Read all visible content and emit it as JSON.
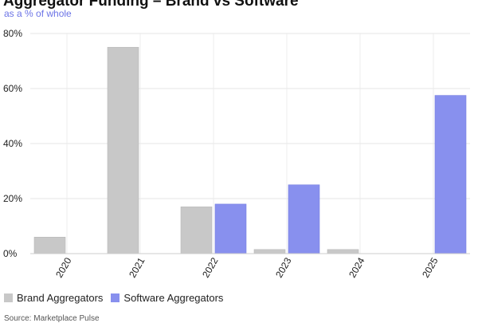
{
  "chart_data": {
    "type": "bar",
    "title": "Aggregator Funding – Brand vs Software",
    "subtitle": "as a % of whole",
    "categories": [
      "2020",
      "2021",
      "2022",
      "2023",
      "2024",
      "2025"
    ],
    "series": [
      {
        "name": "Brand Aggregators",
        "color": "#c8c8c8",
        "values": [
          6,
          75,
          17,
          1.5,
          1.5,
          0
        ]
      },
      {
        "name": "Software Aggregators",
        "color": "#8890ee",
        "values": [
          0,
          0,
          18,
          25,
          0,
          57.5
        ]
      }
    ],
    "ylim": [
      0,
      80
    ],
    "yticks": [
      "0%",
      "20%",
      "40%",
      "60%",
      "80%"
    ],
    "grid": true,
    "legend": "bottom-left",
    "source": "Source: Marketplace Pulse"
  }
}
